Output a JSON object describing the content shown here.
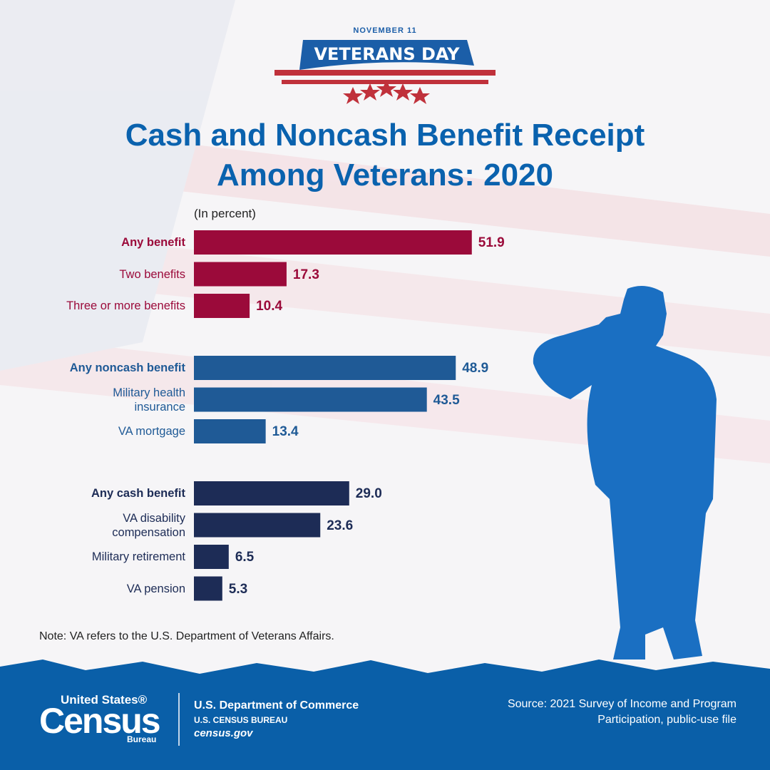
{
  "header": {
    "date": "NOVEMBER 11",
    "banner": "VETERANS DAY"
  },
  "chart_data": {
    "type": "grouped-bar",
    "title": "Cash and Noncash Benefit Receipt Among Veterans: 2020",
    "subtitle": "(In percent)",
    "groups": [
      {
        "color": "#9b0a3a",
        "categories": [
          "Any benefit",
          "Two benefits",
          "Three or more benefits"
        ],
        "values": [
          51.9,
          17.3,
          10.4
        ],
        "value_labels": [
          "51.9",
          "17.3",
          "10.4"
        ]
      },
      {
        "color": "#1f5a96",
        "categories": [
          "Any noncash benefit",
          "Military health insurance",
          "VA mortgage"
        ],
        "values": [
          48.9,
          43.5,
          13.4
        ],
        "value_labels": [
          "48.9",
          "43.5",
          "13.4"
        ]
      },
      {
        "color": "#1d2c56",
        "categories": [
          "Any cash benefit",
          "VA disability compensation",
          "Military retirement",
          "VA pension"
        ],
        "values": [
          29.0,
          23.6,
          6.5,
          5.3
        ],
        "value_labels": [
          "29.0",
          "23.6",
          "6.5",
          "5.3"
        ]
      }
    ],
    "note": "Note: VA refers to the U.S. Department of Veterans Affairs."
  },
  "footer": {
    "logo_top": "United States®",
    "logo_main": "Census",
    "logo_bottom": "Bureau",
    "department": "U.S. Department of Commerce",
    "bureau": "U.S. CENSUS BUREAU",
    "website": "census.gov",
    "source": "Source: 2021 Survey of Income and Program Participation, public-use file"
  }
}
